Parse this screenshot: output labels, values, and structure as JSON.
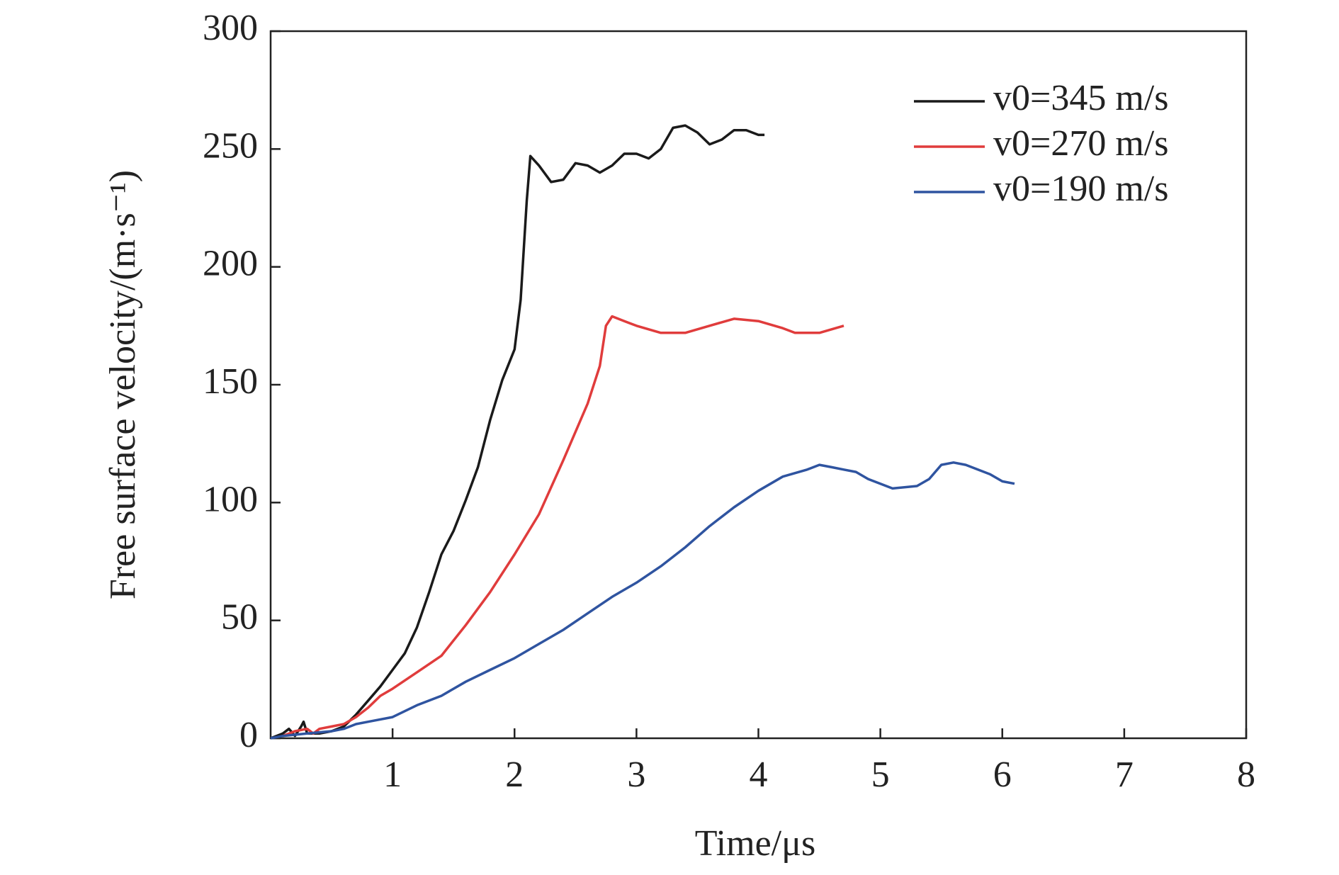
{
  "chart_data": {
    "type": "line",
    "xlabel": "Time/μs",
    "ylabel": "Free surface velocity/(m·s⁻¹)",
    "xlim": [
      0,
      8
    ],
    "xticks": [
      1,
      2,
      3,
      4,
      5,
      6,
      7,
      8
    ],
    "ylim": [
      0,
      300
    ],
    "yticks": [
      0,
      50,
      100,
      150,
      200,
      250,
      300
    ],
    "legend": "upper right",
    "series": [
      {
        "name": "v0=345 m/s",
        "color": "#1a1a1a",
        "x": [
          0,
          0.1,
          0.15,
          0.2,
          0.25,
          0.27,
          0.3,
          0.4,
          0.5,
          0.6,
          0.7,
          0.8,
          0.9,
          1.0,
          1.1,
          1.2,
          1.3,
          1.4,
          1.5,
          1.6,
          1.7,
          1.8,
          1.9,
          2.0,
          2.05,
          2.1,
          2.13,
          2.2,
          2.3,
          2.4,
          2.5,
          2.6,
          2.7,
          2.8,
          2.9,
          3.0,
          3.1,
          3.2,
          3.3,
          3.4,
          3.5,
          3.6,
          3.7,
          3.8,
          3.9,
          4.0,
          4.05
        ],
        "values": [
          0,
          2,
          4,
          1,
          5,
          7,
          2,
          2,
          3,
          5,
          10,
          16,
          22,
          29,
          36,
          47,
          62,
          78,
          88,
          101,
          115,
          135,
          152,
          165,
          186,
          228,
          247,
          243,
          236,
          237,
          244,
          243,
          240,
          243,
          248,
          248,
          246,
          250,
          259,
          260,
          257,
          252,
          254,
          258,
          258,
          256,
          256
        ]
      },
      {
        "name": "v0=270 m/s",
        "color": "#e03c3c",
        "x": [
          0.1,
          0.2,
          0.3,
          0.35,
          0.4,
          0.5,
          0.6,
          0.7,
          0.8,
          0.9,
          1.0,
          1.2,
          1.4,
          1.6,
          1.8,
          2.0,
          2.2,
          2.4,
          2.6,
          2.7,
          2.75,
          2.8,
          2.9,
          3.0,
          3.2,
          3.4,
          3.6,
          3.8,
          4.0,
          4.2,
          4.3,
          4.5,
          4.7
        ],
        "values": [
          1,
          3,
          4,
          2,
          4,
          5,
          6,
          9,
          13,
          18,
          21,
          28,
          35,
          48,
          62,
          78,
          95,
          118,
          142,
          158,
          175,
          179,
          177,
          175,
          172,
          172,
          175,
          178,
          177,
          174,
          172,
          172,
          175
        ]
      },
      {
        "name": "v0=190 m/s",
        "color": "#2f54a0",
        "x": [
          0,
          0.1,
          0.3,
          0.5,
          0.6,
          0.7,
          0.8,
          1.0,
          1.2,
          1.4,
          1.6,
          1.8,
          2.0,
          2.2,
          2.4,
          2.6,
          2.8,
          3.0,
          3.2,
          3.4,
          3.6,
          3.8,
          4.0,
          4.2,
          4.4,
          4.5,
          4.6,
          4.7,
          4.8,
          4.9,
          5.0,
          5.1,
          5.3,
          5.4,
          5.5,
          5.6,
          5.7,
          5.9,
          6.0,
          6.1
        ],
        "values": [
          0,
          1,
          2,
          3,
          4,
          6,
          7,
          9,
          14,
          18,
          24,
          29,
          34,
          40,
          46,
          53,
          60,
          66,
          73,
          81,
          90,
          98,
          105,
          111,
          114,
          116,
          115,
          114,
          113,
          110,
          108,
          106,
          107,
          110,
          116,
          117,
          116,
          112,
          109,
          108
        ]
      }
    ]
  }
}
